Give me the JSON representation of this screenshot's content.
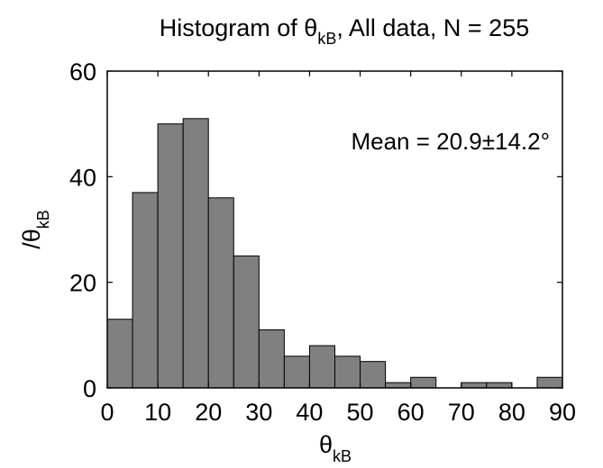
{
  "chart_data": {
    "type": "bar",
    "title": {
      "main": "Histogram of θ",
      "sub": "kB",
      "rest": ", All data, N = 255"
    },
    "xlabel": {
      "main": "θ",
      "sub": "kB"
    },
    "ylabel": {
      "main": "/θ",
      "sub": "kB"
    },
    "annotation": "Mean = 20.9±14.2°",
    "xlim": [
      0,
      90
    ],
    "ylim": [
      0,
      60
    ],
    "xticks": [
      0,
      10,
      20,
      30,
      40,
      50,
      60,
      70,
      80,
      90
    ],
    "yticks": [
      0,
      20,
      40,
      60
    ],
    "bin_width": 5,
    "bin_starts": [
      0,
      5,
      10,
      15,
      20,
      25,
      30,
      35,
      40,
      45,
      50,
      55,
      60,
      65,
      70,
      75,
      80,
      85
    ],
    "values": [
      13,
      37,
      50,
      51,
      36,
      25,
      11,
      6,
      8,
      6,
      5,
      1,
      2,
      0,
      1,
      1,
      0,
      2
    ],
    "bar_color": "#808080",
    "edge_color": "#000000"
  }
}
